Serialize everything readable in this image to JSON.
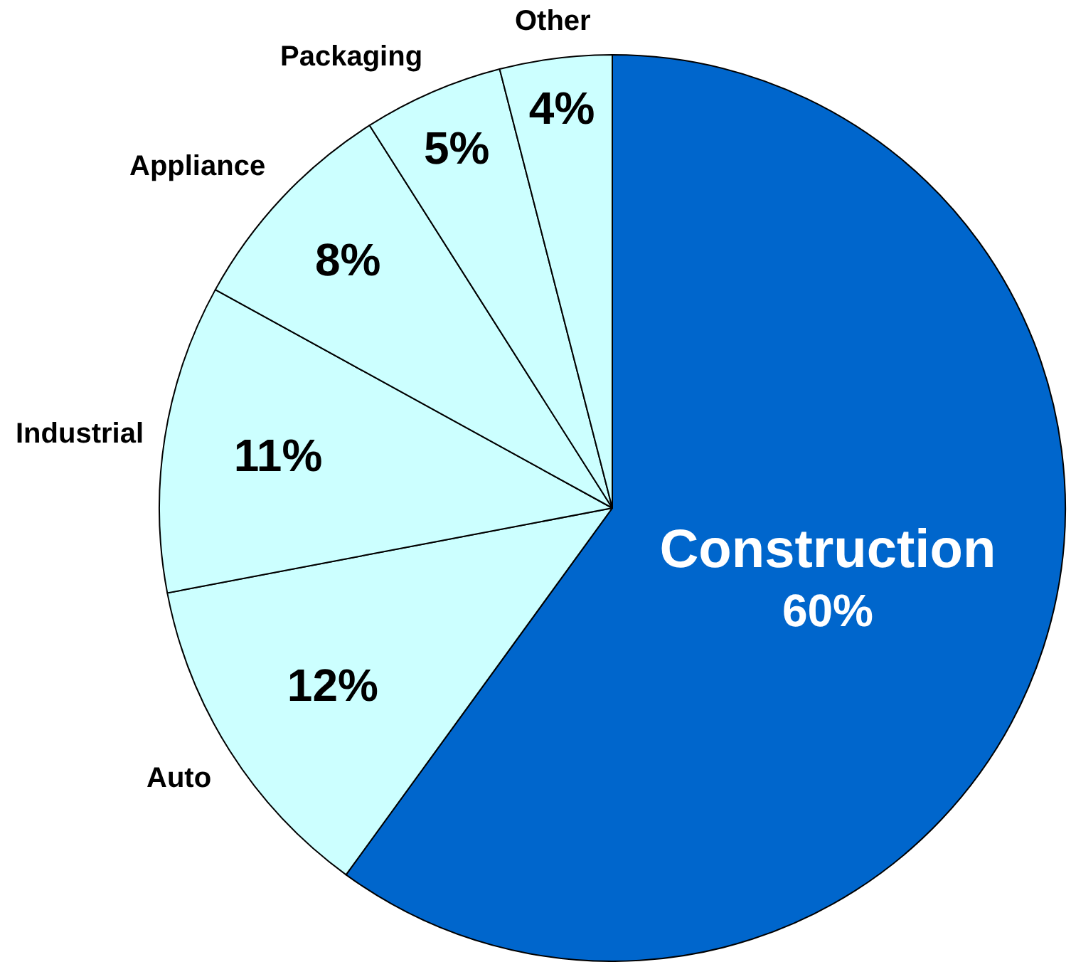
{
  "chart_data": {
    "type": "pie",
    "categories": [
      "Construction",
      "Auto",
      "Industrial",
      "Appliance",
      "Packaging",
      "Other"
    ],
    "values": [
      60,
      12,
      11,
      8,
      5,
      4
    ],
    "value_labels": [
      "60%",
      "12%",
      "11%",
      "8%",
      "5%",
      "4%"
    ],
    "colors": [
      "#0066cc",
      "#ccffff",
      "#ccffff",
      "#ccffff",
      "#ccffff",
      "#ccffff"
    ],
    "legend": false
  }
}
